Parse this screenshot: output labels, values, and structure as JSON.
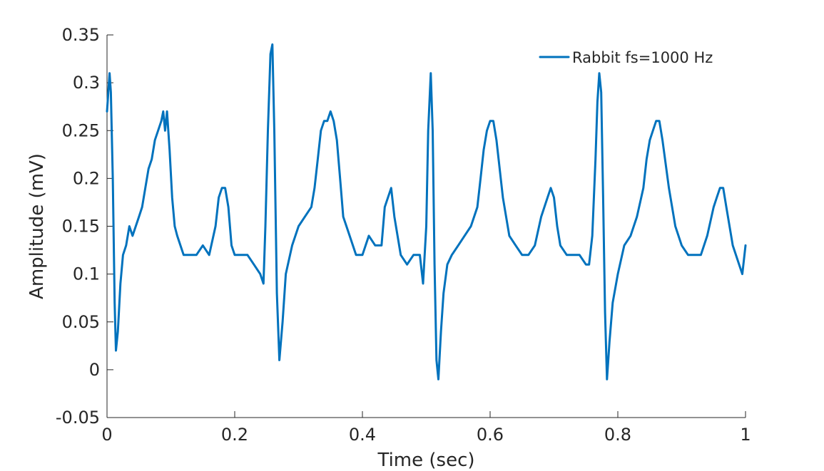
{
  "chart_data": {
    "type": "line",
    "xlabel": "Time (sec)",
    "ylabel": "Amplitude (mV)",
    "xlim": [
      0,
      1
    ],
    "ylim": [
      -0.05,
      0.35
    ],
    "xticks": [
      0,
      0.2,
      0.4,
      0.6,
      0.8,
      1
    ],
    "xtick_labels": [
      "0",
      "0.2",
      "0.4",
      "0.6",
      "0.8",
      "1"
    ],
    "yticks": [
      -0.05,
      0,
      0.05,
      0.1,
      0.15,
      0.2,
      0.25,
      0.3,
      0.35
    ],
    "ytick_labels": [
      "-0.05",
      "0",
      "0.05",
      "0.1",
      "0.15",
      "0.2",
      "0.25",
      "0.3",
      "0.35"
    ],
    "grid": false,
    "legend_position": "top-right",
    "series": [
      {
        "name": "Rabbit fs=1000 Hz",
        "color": "#0072BD",
        "x": [
          0,
          0.004,
          0.006,
          0.009,
          0.012,
          0.014,
          0.017,
          0.021,
          0.025,
          0.03,
          0.035,
          0.04,
          0.045,
          0.05,
          0.055,
          0.06,
          0.065,
          0.07,
          0.075,
          0.08,
          0.085,
          0.088,
          0.091,
          0.094,
          0.098,
          0.102,
          0.106,
          0.11,
          0.115,
          0.12,
          0.13,
          0.14,
          0.15,
          0.16,
          0.17,
          0.175,
          0.18,
          0.185,
          0.19,
          0.195,
          0.2,
          0.21,
          0.22,
          0.23,
          0.24,
          0.245,
          0.248,
          0.252,
          0.256,
          0.259,
          0.262,
          0.266,
          0.27,
          0.275,
          0.28,
          0.29,
          0.3,
          0.31,
          0.32,
          0.325,
          0.33,
          0.335,
          0.34,
          0.345,
          0.35,
          0.355,
          0.36,
          0.365,
          0.37,
          0.38,
          0.39,
          0.4,
          0.41,
          0.42,
          0.43,
          0.435,
          0.44,
          0.445,
          0.45,
          0.46,
          0.47,
          0.48,
          0.49,
          0.495,
          0.5,
          0.503,
          0.507,
          0.51,
          0.513,
          0.516,
          0.519,
          0.523,
          0.527,
          0.533,
          0.54,
          0.55,
          0.56,
          0.57,
          0.58,
          0.585,
          0.59,
          0.595,
          0.6,
          0.605,
          0.61,
          0.62,
          0.63,
          0.64,
          0.65,
          0.66,
          0.67,
          0.68,
          0.69,
          0.695,
          0.7,
          0.705,
          0.71,
          0.72,
          0.73,
          0.74,
          0.75,
          0.755,
          0.76,
          0.765,
          0.768,
          0.771,
          0.774,
          0.777,
          0.78,
          0.783,
          0.787,
          0.792,
          0.8,
          0.81,
          0.82,
          0.83,
          0.84,
          0.845,
          0.85,
          0.855,
          0.86,
          0.865,
          0.87,
          0.88,
          0.89,
          0.9,
          0.91,
          0.92,
          0.93,
          0.94,
          0.95,
          0.955,
          0.96,
          0.965,
          0.97,
          0.98,
          0.99,
          0.995,
          1.0
        ],
        "y": [
          0.27,
          0.31,
          0.29,
          0.2,
          0.07,
          0.02,
          0.04,
          0.09,
          0.12,
          0.13,
          0.15,
          0.14,
          0.15,
          0.16,
          0.17,
          0.19,
          0.21,
          0.22,
          0.24,
          0.25,
          0.26,
          0.27,
          0.25,
          0.27,
          0.23,
          0.18,
          0.15,
          0.14,
          0.13,
          0.12,
          0.12,
          0.12,
          0.13,
          0.12,
          0.15,
          0.18,
          0.19,
          0.19,
          0.17,
          0.13,
          0.12,
          0.12,
          0.12,
          0.11,
          0.1,
          0.09,
          0.15,
          0.25,
          0.33,
          0.34,
          0.25,
          0.08,
          0.01,
          0.05,
          0.1,
          0.13,
          0.15,
          0.16,
          0.17,
          0.19,
          0.22,
          0.25,
          0.26,
          0.26,
          0.27,
          0.26,
          0.24,
          0.2,
          0.16,
          0.14,
          0.12,
          0.12,
          0.14,
          0.13,
          0.13,
          0.17,
          0.18,
          0.19,
          0.16,
          0.12,
          0.11,
          0.12,
          0.12,
          0.09,
          0.15,
          0.25,
          0.31,
          0.25,
          0.11,
          0.01,
          -0.01,
          0.04,
          0.08,
          0.11,
          0.12,
          0.13,
          0.14,
          0.15,
          0.17,
          0.2,
          0.23,
          0.25,
          0.26,
          0.26,
          0.24,
          0.18,
          0.14,
          0.13,
          0.12,
          0.12,
          0.13,
          0.16,
          0.18,
          0.19,
          0.18,
          0.15,
          0.13,
          0.12,
          0.12,
          0.12,
          0.11,
          0.11,
          0.14,
          0.22,
          0.28,
          0.31,
          0.29,
          0.18,
          0.06,
          -0.01,
          0.03,
          0.07,
          0.1,
          0.13,
          0.14,
          0.16,
          0.19,
          0.22,
          0.24,
          0.25,
          0.26,
          0.26,
          0.24,
          0.19,
          0.15,
          0.13,
          0.12,
          0.12,
          0.12,
          0.14,
          0.17,
          0.18,
          0.19,
          0.19,
          0.17,
          0.13,
          0.11,
          0.1,
          0.13
        ]
      }
    ]
  }
}
